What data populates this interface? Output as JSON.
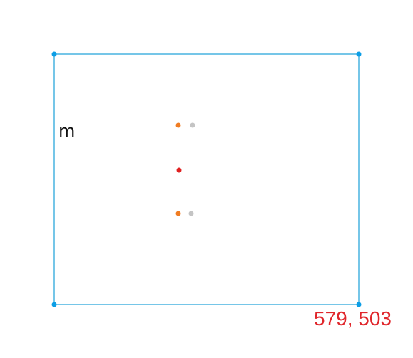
{
  "canvas": {
    "frame_color": "#1aa0d8",
    "handle_color": "#0c9ee6"
  },
  "labels": {
    "glyph": "m",
    "dimensions": "579, 503"
  },
  "markers": [
    {
      "name": "orange-point-top",
      "color": "#f07c22"
    },
    {
      "name": "gray-point-top",
      "color": "#c4c4c4"
    },
    {
      "name": "red-center-point",
      "color": "#e02020"
    },
    {
      "name": "orange-point-bottom",
      "color": "#f07c22"
    },
    {
      "name": "gray-point-bottom",
      "color": "#c4c4c4"
    }
  ],
  "colors": {
    "dimensions_text": "#e0262b",
    "glyph_text": "#111111"
  }
}
